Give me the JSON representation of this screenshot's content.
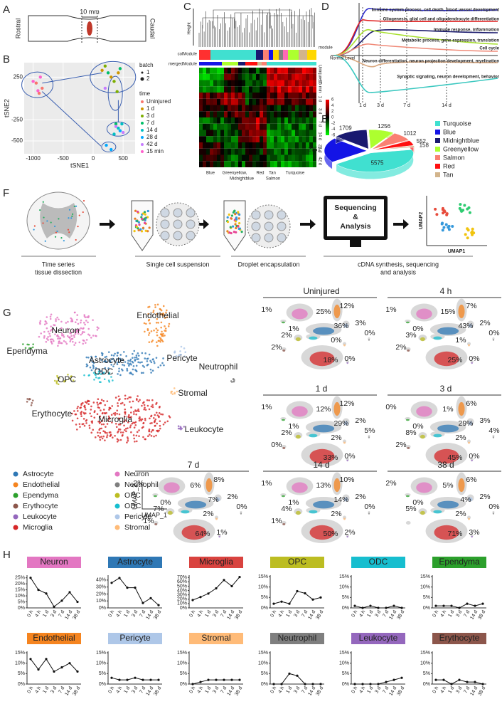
{
  "figure": {
    "panel_letters": [
      "A",
      "B",
      "C",
      "D",
      "E",
      "F",
      "G",
      "H"
    ],
    "a": {
      "scale": "10 mm",
      "rostral": "Rostral",
      "caudal": "Caudal"
    },
    "c": {
      "height": "Height",
      "col_module": "colModule",
      "merged_module": "mergedModule",
      "module": "module",
      "rows": [
        "Uninjured",
        "15 min",
        "1 d",
        "3 d",
        "7 d",
        "14 d",
        "28 d",
        "42 d"
      ],
      "scale": [
        "6",
        "4",
        "2",
        "0",
        "-2",
        "-4",
        "-6"
      ],
      "modules_top": [
        "Blue",
        "Greenyellow,",
        "Red",
        "Tan",
        "Turquoise"
      ],
      "modules_bottom": [
        "Midnightblue",
        "Salmon"
      ]
    },
    "d": {
      "terms": [
        {
          "text": "Immune system process, cell death, blood vessel development",
          "color": "#2a2acb"
        },
        {
          "text": "Gliogenesis, glial cell and oligodendrocyte differentiation",
          "color": "#e02020"
        },
        {
          "text": "Immune response, inflammation",
          "color": "#1c1c6e"
        },
        {
          "text": "Metabolic process, gene expression, translation",
          "color": "#a8e030"
        },
        {
          "text": "Cell cycle",
          "color": "#f08a78"
        },
        {
          "text": "Neuron differentiation, neuron projection development, myelination",
          "color": "#d9a77e"
        },
        {
          "text": "Synaptic signaling, neuron development, behavior",
          "color": "#3cc8c0"
        }
      ],
      "normal": "Normal Level",
      "times": [
        "1 d",
        "3 d",
        "7 d",
        "14 d"
      ]
    },
    "f": {
      "steps": [
        [
          "Time series",
          "tissue dissection"
        ],
        [
          "Single cell suspension"
        ],
        [
          "Droplet encapsulation"
        ],
        [
          "cDNA synthesis, sequencing",
          "and analysis"
        ]
      ],
      "monitor": [
        "Sequencing",
        "&",
        "Analysis"
      ],
      "umap_y": "UMAP2",
      "umap_x": "UMAP1"
    },
    "g": {
      "clusters": [
        {
          "name": "Astrocyte",
          "color": "#2f78b5"
        },
        {
          "name": "Endothelial",
          "color": "#f5841f"
        },
        {
          "name": "Ependyma",
          "color": "#2ca02c"
        },
        {
          "name": "Erythocyte",
          "color": "#8c564b"
        },
        {
          "name": "Leukocyte",
          "color": "#9467bd"
        },
        {
          "name": "Microglia",
          "color": "#d62728"
        },
        {
          "name": "Neuron",
          "color": "#e377c2"
        },
        {
          "name": "Neutrophil",
          "color": "#7f7f7f"
        },
        {
          "name": "OPC",
          "color": "#bcbd22"
        },
        {
          "name": "ODC",
          "color": "#17becf"
        },
        {
          "name": "Pericyte",
          "color": "#aec7e8"
        },
        {
          "name": "Stromal",
          "color": "#ffbb78"
        }
      ],
      "umap_y": "UMAP_2",
      "umap_x": "UMAP_1",
      "timepoints": [
        {
          "title": "Uninjured",
          "percent": {
            "Ependyma": "1%",
            "Neuron": "25%",
            "Endothelial": "12%",
            "Pericyte": "3%",
            "Astrocyte": "36%",
            "ODC": "1%",
            "OPC": "2%",
            "Stromal": "0%",
            "Erythocyte": "2%",
            "Microglia": "18%",
            "Leukocyte": "0%",
            "Neutrophil": "0%"
          }
        },
        {
          "title": "4 h",
          "percent": {
            "Ependyma": "1%",
            "Neuron": "15%",
            "Endothelial": "7%",
            "Pericyte": "2%",
            "Astrocyte": "43%",
            "ODC": "0%",
            "OPC": "3%",
            "Stromal": "1%",
            "Erythocyte": "2%",
            "Microglia": "25%",
            "Leukocyte": "0%",
            "Neutrophil": "0%"
          }
        },
        {
          "title": "1 d",
          "percent": {
            "Ependyma": "1%",
            "Neuron": "12%",
            "Endothelial": "12%",
            "Pericyte": "2%",
            "Astrocyte": "29%",
            "ODC": "1%",
            "OPC": "2%",
            "Stromal": "2%",
            "Erythocyte": "0%",
            "Microglia": "33%",
            "Leukocyte": "0%",
            "Neutrophil": "5%"
          }
        },
        {
          "title": "3 d",
          "percent": {
            "Ependyma": "0%",
            "Neuron": "1%",
            "Endothelial": "6%",
            "Pericyte": "3%",
            "Astrocyte": "29%",
            "ODC": "0%",
            "OPC": "8%",
            "Stromal": "2%",
            "Erythocyte": "2%",
            "Microglia": "45%",
            "Leukocyte": "0%",
            "Neutrophil": "4%"
          }
        },
        {
          "title": "7 d",
          "percent": {
            "Ependyma": "2%",
            "Neuron": "6%",
            "Endothelial": "8%",
            "Pericyte": "2%",
            "Astrocyte": "7%",
            "ODC": "0%",
            "OPC": "7%",
            "Stromal": "2%",
            "Erythocyte": "1%",
            "Microglia": "64%",
            "Leukocyte": "1%",
            "Neutrophil": "0%"
          }
        },
        {
          "title": "14 d",
          "percent": {
            "Ependyma": "1%",
            "Neuron": "13%",
            "Endothelial": "10%",
            "Pericyte": "2%",
            "Astrocyte": "14%",
            "ODC": "1%",
            "OPC": "4%",
            "Stromal": "2%",
            "Erythocyte": "1%",
            "Microglia": "50%",
            "Leukocyte": "2%",
            "Neutrophil": "0%"
          }
        },
        {
          "title": "38 d",
          "percent": {
            "Ependyma": "2%",
            "Neuron": "5%",
            "Endothelial": "6%",
            "Pericyte": "2%",
            "Astrocyte": "4%",
            "ODC": "0%",
            "OPC": "5%",
            "Stromal": "2%",
            "Microglia": "71%",
            "Leukocyte": "3%",
            "Neutrophil": "0%"
          }
        }
      ]
    }
  },
  "chart_data": [
    {
      "type": "scatter",
      "xlabel": "tSNE1",
      "ylabel": "tSNE2",
      "xlim": [
        -1150,
        700
      ],
      "ylim": [
        -650,
        420
      ],
      "xticks": [
        -1000,
        -500,
        0,
        500
      ],
      "yticks": [
        250,
        -250,
        -500
      ],
      "grid": true,
      "batch_title": "batch",
      "batch": [
        "1",
        "2"
      ],
      "legend_title": "time",
      "series": [
        {
          "name": "Uninjured",
          "color": "#F8766D",
          "x": [
            -950,
            -850,
            -900
          ],
          "values": [
            180,
            120,
            60
          ]
        },
        {
          "name": "1 d",
          "color": "#CD9600",
          "x": [
            150,
            300,
            420
          ],
          "values": [
            330,
            250,
            300
          ]
        },
        {
          "name": "3 d",
          "color": "#7CAE00",
          "x": [
            200,
            350,
            400
          ],
          "values": [
            380,
            200,
            80
          ]
        },
        {
          "name": "7 d",
          "color": "#00BE67",
          "x": [
            250,
            450,
            380
          ],
          "values": [
            300,
            350,
            -300
          ]
        },
        {
          "name": "14 d",
          "color": "#00BFC4",
          "x": [
            420,
            480,
            350
          ],
          "values": [
            -350,
            -300,
            -420
          ]
        },
        {
          "name": "28 d",
          "color": "#00A9FF",
          "x": [
            300,
            450,
            220
          ],
          "values": [
            -600,
            -380,
            -550
          ]
        },
        {
          "name": "42 d",
          "color": "#C77CFF",
          "x": [
            200,
            380,
            500
          ],
          "values": [
            120,
            -330,
            -400
          ]
        },
        {
          "name": "15 min",
          "color": "#FF61CC",
          "x": [
            -1000,
            -880,
            -920
          ],
          "values": [
            200,
            250,
            90
          ]
        }
      ]
    },
    {
      "type": "pie",
      "categories": [
        "Turquoise",
        "Blue",
        "Midnightblue",
        "Greenyellow",
        "Salmon",
        "Red",
        "Tan"
      ],
      "values": [
        5575,
        2751,
        1709,
        1256,
        1012,
        552,
        158
      ],
      "colors": [
        "#40e0d0",
        "#1414e6",
        "#191970",
        "#adff2f",
        "#fa8072",
        "#ff1010",
        "#d2b48c"
      ]
    },
    {
      "type": "line",
      "title": "Neuron",
      "color": "#e377c2",
      "categories": [
        "0 h",
        "4 h",
        "1 d",
        "3 d",
        "7 d",
        "14 d",
        "38 d"
      ],
      "values": [
        25,
        15,
        12,
        1,
        6,
        13,
        5
      ],
      "ylim": [
        0,
        26
      ],
      "yticks": [
        {
          "value": 0,
          "label": "0%"
        },
        {
          "value": 5,
          "label": "5%"
        },
        {
          "value": 10,
          "label": "10%"
        },
        {
          "value": 15,
          "label": "15%"
        },
        {
          "value": 20,
          "label": "20%"
        },
        {
          "value": 25,
          "label": "25%"
        }
      ]
    },
    {
      "type": "line",
      "title": "Astrocyte",
      "color": "#2f78b5",
      "categories": [
        "0 h",
        "4 h",
        "1 d",
        "3 d",
        "7 d",
        "14 d",
        "38 d"
      ],
      "values": [
        36,
        43,
        29,
        29,
        7,
        14,
        4
      ],
      "ylim": [
        0,
        45
      ],
      "yticks": [
        {
          "value": 0,
          "label": "0%"
        },
        {
          "value": 10,
          "label": "10%"
        },
        {
          "value": 20,
          "label": "20%"
        },
        {
          "value": 30,
          "label": "30%"
        },
        {
          "value": 40,
          "label": "40%"
        }
      ]
    },
    {
      "type": "line",
      "title": "Microglia",
      "color": "#d9433f",
      "categories": [
        "0 h",
        "4 h",
        "1 d",
        "3 d",
        "7 d",
        "14 d",
        "38 d"
      ],
      "values": [
        18,
        25,
        33,
        45,
        64,
        50,
        71
      ],
      "ylim": [
        0,
        72
      ],
      "yticks": [
        {
          "value": 0,
          "label": "0%"
        },
        {
          "value": 10,
          "label": "10%"
        },
        {
          "value": 20,
          "label": "20%"
        },
        {
          "value": 30,
          "label": "30%"
        },
        {
          "value": 40,
          "label": "40%"
        },
        {
          "value": 50,
          "label": "50%"
        },
        {
          "value": 60,
          "label": "60%"
        },
        {
          "value": 70,
          "label": "70%"
        }
      ]
    },
    {
      "type": "line",
      "title": "OPC",
      "color": "#bcbd22",
      "categories": [
        "0 h",
        "4 h",
        "1 d",
        "3 d",
        "7 d",
        "14 d",
        "38 d"
      ],
      "values": [
        2,
        3,
        2,
        8,
        7,
        4,
        5
      ],
      "ylim": [
        0,
        15
      ],
      "yticks": [
        {
          "value": 0,
          "label": "0%"
        },
        {
          "value": 5,
          "label": "5%"
        },
        {
          "value": 10,
          "label": "10%"
        },
        {
          "value": 15,
          "label": "15%"
        }
      ]
    },
    {
      "type": "line",
      "title": "ODC",
      "color": "#17becf",
      "categories": [
        "0 h",
        "4 h",
        "1 d",
        "3 d",
        "7 d",
        "14 d",
        "38 d"
      ],
      "values": [
        1,
        0,
        1,
        0,
        0,
        1,
        0
      ],
      "ylim": [
        0,
        15
      ],
      "yticks": [
        {
          "value": 0,
          "label": "0%"
        },
        {
          "value": 5,
          "label": "5%"
        },
        {
          "value": 10,
          "label": "10%"
        },
        {
          "value": 15,
          "label": "15%"
        }
      ]
    },
    {
      "type": "line",
      "title": "Ependyma",
      "color": "#2ca02c",
      "categories": [
        "0 h",
        "4 h",
        "1 d",
        "3 d",
        "7 d",
        "14 d",
        "38 d"
      ],
      "values": [
        1,
        1,
        1,
        0,
        2,
        1,
        2
      ],
      "ylim": [
        0,
        15
      ],
      "yticks": [
        {
          "value": 0,
          "label": "0%"
        },
        {
          "value": 5,
          "label": "5%"
        },
        {
          "value": 10,
          "label": "10%"
        },
        {
          "value": 15,
          "label": "15%"
        }
      ]
    },
    {
      "type": "line",
      "title": "Endothelial",
      "color": "#f5841f",
      "categories": [
        "0 h",
        "4 h",
        "1 d",
        "3 d",
        "7 d",
        "14 d",
        "38 d"
      ],
      "values": [
        12,
        7,
        12,
        6,
        8,
        10,
        6
      ],
      "ylim": [
        0,
        15
      ],
      "yticks": [
        {
          "value": 0,
          "label": "0%"
        },
        {
          "value": 5,
          "label": "5%"
        },
        {
          "value": 10,
          "label": "10%"
        },
        {
          "value": 15,
          "label": "15%"
        }
      ]
    },
    {
      "type": "line",
      "title": "Pericyte",
      "color": "#aec7e8",
      "categories": [
        "0 h",
        "4 h",
        "1 d",
        "3 d",
        "7 d",
        "14 d",
        "38 d"
      ],
      "values": [
        3,
        2,
        2,
        3,
        2,
        2,
        2
      ],
      "ylim": [
        0,
        15
      ],
      "yticks": [
        {
          "value": 0,
          "label": "0%"
        },
        {
          "value": 5,
          "label": "5%"
        },
        {
          "value": 10,
          "label": "10%"
        },
        {
          "value": 15,
          "label": "15%"
        }
      ]
    },
    {
      "type": "line",
      "title": "Stromal",
      "color": "#ffbb78",
      "categories": [
        "0 h",
        "4 h",
        "1 d",
        "3 d",
        "7 d",
        "14 d",
        "38 d"
      ],
      "values": [
        0,
        1,
        2,
        2,
        2,
        2,
        2
      ],
      "ylim": [
        0,
        15
      ],
      "yticks": [
        {
          "value": 0,
          "label": "0%"
        },
        {
          "value": 5,
          "label": "5%"
        },
        {
          "value": 10,
          "label": "10%"
        },
        {
          "value": 15,
          "label": "15%"
        }
      ]
    },
    {
      "type": "line",
      "title": "Neutrophil",
      "color": "#7f7f7f",
      "categories": [
        "0 h",
        "4 h",
        "1 d",
        "3 d",
        "7 d",
        "14 d",
        "38 d"
      ],
      "values": [
        0,
        0,
        5,
        4,
        0,
        0,
        0
      ],
      "ylim": [
        0,
        15
      ],
      "yticks": [
        {
          "value": 0,
          "label": "0%"
        },
        {
          "value": 5,
          "label": "5%"
        },
        {
          "value": 10,
          "label": "10%"
        },
        {
          "value": 15,
          "label": "15%"
        }
      ]
    },
    {
      "type": "line",
      "title": "Leukocyte",
      "color": "#9467bd",
      "categories": [
        "0 h",
        "4 h",
        "1 d",
        "3 d",
        "7 d",
        "14 d",
        "38 d"
      ],
      "values": [
        0,
        0,
        0,
        0,
        1,
        2,
        3
      ],
      "ylim": [
        0,
        15
      ],
      "yticks": [
        {
          "value": 0,
          "label": "0%"
        },
        {
          "value": 5,
          "label": "5%"
        },
        {
          "value": 10,
          "label": "10%"
        },
        {
          "value": 15,
          "label": "15%"
        }
      ]
    },
    {
      "type": "line",
      "title": "Erythocyte",
      "color": "#8c564b",
      "categories": [
        "0 h",
        "4 h",
        "1 d",
        "3 d",
        "7 d",
        "14 d",
        "38 d"
      ],
      "values": [
        2,
        2,
        0,
        2,
        1,
        1,
        0
      ],
      "ylim": [
        0,
        15
      ],
      "yticks": [
        {
          "value": 0,
          "label": "0%"
        },
        {
          "value": 5,
          "label": "5%"
        },
        {
          "value": 10,
          "label": "10%"
        },
        {
          "value": 15,
          "label": "15%"
        }
      ]
    }
  ]
}
